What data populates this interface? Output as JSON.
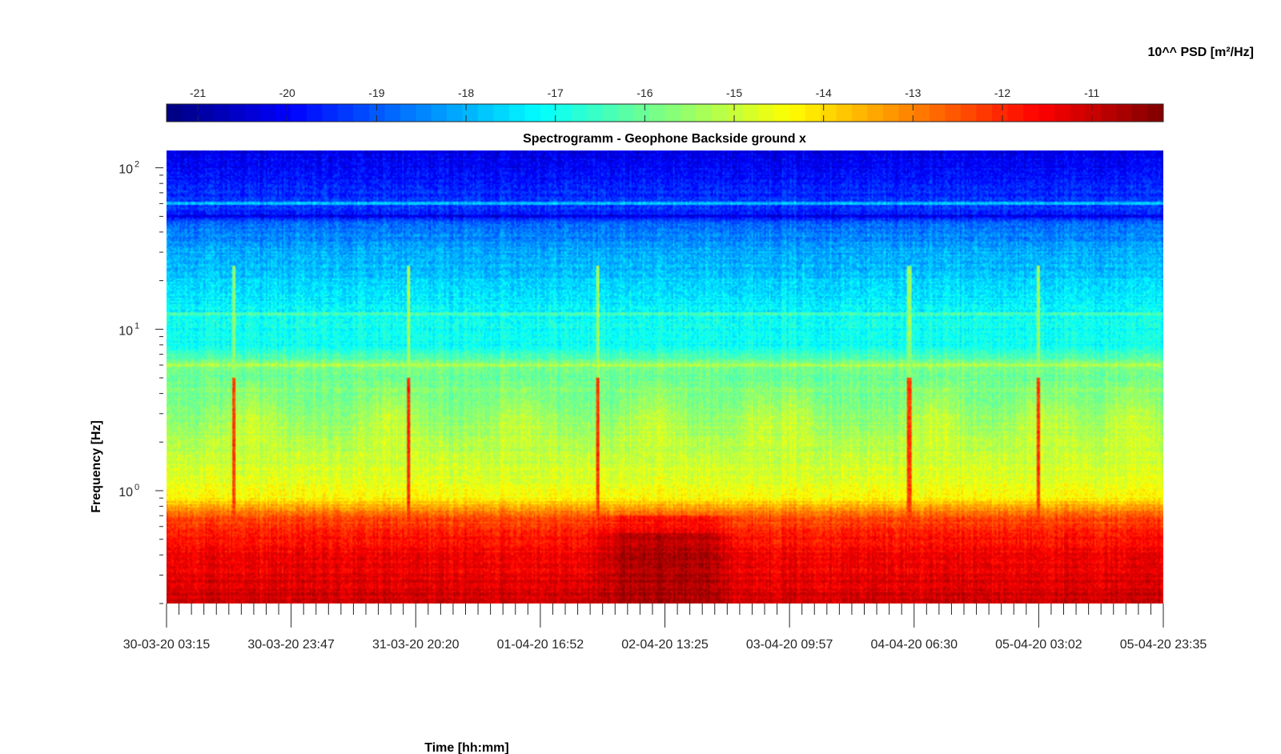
{
  "chart_data": {
    "type": "heatmap",
    "title": "Spectrogramm - Geophone Backside ground x",
    "xlabel": "Time [hh:mm]",
    "ylabel": "Frequency [Hz]",
    "y_scale": "log",
    "ylim": [
      0.2,
      128
    ],
    "y_ticks": [
      {
        "value": 1,
        "base": "10",
        "exp": "0"
      },
      {
        "value": 10,
        "base": "10",
        "exp": "1"
      },
      {
        "value": 100,
        "base": "10",
        "exp": "2"
      }
    ],
    "x_tick_labels": [
      "30-03-20 03:15",
      "30-03-20 23:47",
      "31-03-20 20:20",
      "01-04-20 16:52",
      "02-04-20 13:25",
      "03-04-20 09:57",
      "04-04-20 06:30",
      "05-04-20 03:02",
      "05-04-20 23:35"
    ],
    "x_minor_ticks_per_major": 10,
    "colorbar": {
      "label": "10^^ PSD [m²/Hz]",
      "range": [
        -21.35,
        -10.2
      ],
      "ticks": [
        -21,
        -20,
        -19,
        -18,
        -17,
        -16,
        -15,
        -14,
        -13,
        -12,
        -11
      ],
      "colormap": "jet",
      "placement": "top"
    },
    "z_profile": [
      {
        "f": 0.2,
        "v": -11.0
      },
      {
        "f": 0.3,
        "v": -11.35
      },
      {
        "f": 0.5,
        "v": -11.7
      },
      {
        "f": 0.7,
        "v": -12.5
      },
      {
        "f": 0.9,
        "v": -14.3
      },
      {
        "f": 1.2,
        "v": -14.7
      },
      {
        "f": 2.5,
        "v": -15.6
      },
      {
        "f": 5,
        "v": -16.0
      },
      {
        "f": 6,
        "v": -15.8
      },
      {
        "f": 8,
        "v": -17.0
      },
      {
        "f": 12,
        "v": -17.1
      },
      {
        "f": 20,
        "v": -17.7
      },
      {
        "f": 30,
        "v": -18.1
      },
      {
        "f": 45,
        "v": -18.8
      },
      {
        "f": 50,
        "v": -19.8
      },
      {
        "f": 60,
        "v": -19.3
      },
      {
        "f": 80,
        "v": -19.7
      },
      {
        "f": 128,
        "v": -20.3
      }
    ],
    "narrow_lines": [
      {
        "f": 6.0,
        "v": -15.3
      },
      {
        "f": 12.5,
        "v": -16.4
      },
      {
        "f": 50.0,
        "v": -20.2
      },
      {
        "f": 60.0,
        "v": -17.8
      }
    ],
    "daily_activity": {
      "description": "day-time bursts of higher PSD between 1 and 5 Hz",
      "v_peak": -15.0,
      "f_range": [
        1.0,
        5.0
      ],
      "x_centers_fraction": [
        0.085,
        0.225,
        0.355,
        0.49,
        0.6,
        0.63,
        0.77,
        0.88,
        0.965
      ]
    },
    "transients_x_fraction": [
      0.067,
      0.243,
      0.432,
      0.745,
      0.875
    ],
    "dark_low_frequency_region": {
      "x_fraction": [
        0.42,
        0.58
      ],
      "v": -10.5
    }
  }
}
